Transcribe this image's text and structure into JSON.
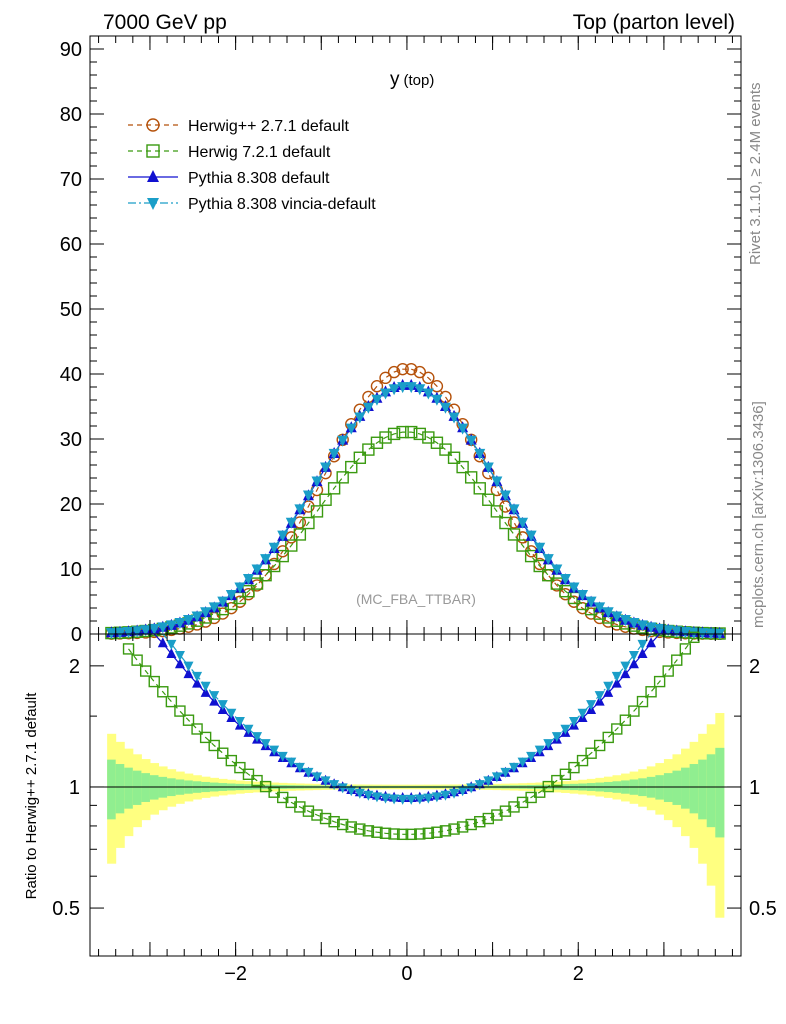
{
  "header": {
    "left": "7000 GeV pp",
    "right": "Top (parton level)"
  },
  "side_labels": {
    "rivet": "Rivet 3.1.10, ≥ 2.4M events",
    "mcplots": "mcplots.cern.ch [arXiv:1306.3436]"
  },
  "colors": {
    "herwig_pp": "#b5510a",
    "herwig7": "#3a9a10",
    "pythia": "#1010d0",
    "vincia": "#1a9ec8",
    "band_green": "#90ee90",
    "band_yellow": "#ffff80"
  },
  "chart_data": [
    {
      "type": "line",
      "title": "y (top)",
      "title_main": "y",
      "title_sub": "(top)",
      "watermark": "(MC_FBA_TTBAR)",
      "xlabel": "",
      "ylabel": "",
      "xlim": [
        -3.7,
        3.9
      ],
      "ylim": [
        0,
        92
      ],
      "yticks": [
        0,
        10,
        20,
        30,
        40,
        50,
        60,
        70,
        80,
        90
      ],
      "ytick_labels": [
        "0",
        "10",
        "20",
        "30",
        "40",
        "50",
        "60",
        "70",
        "80",
        "90"
      ],
      "legend": [
        {
          "label": "Herwig++ 2.7.1 default",
          "marker": "circle-open",
          "style": "dashed",
          "color": "#b5510a"
        },
        {
          "label": "Herwig 7.2.1 default",
          "marker": "square-open",
          "style": "dashed",
          "color": "#3a9a10"
        },
        {
          "label": "Pythia 8.308 default",
          "marker": "triangle-up",
          "style": "solid",
          "color": "#1010d0"
        },
        {
          "label": "Pythia 8.308 vincia-default",
          "marker": "triangle-down",
          "style": "dashdot",
          "color": "#1a9ec8"
        }
      ],
      "series": [
        {
          "name": "Herwig++ 2.7.1 default",
          "peak": 40.8,
          "sigma": 0.95
        },
        {
          "name": "Herwig 7.2.1 default",
          "peak": 31.1,
          "sigma": 1.05
        },
        {
          "name": "Pythia 8.308 default",
          "peak": 38.3,
          "sigma": 1.06
        },
        {
          "name": "Pythia 8.308 vincia-default",
          "peak": 38.1,
          "sigma": 1.07
        }
      ],
      "bin_width": 0.1,
      "x_range_points": [
        -3.45,
        3.65
      ]
    },
    {
      "type": "line",
      "title": "",
      "xlabel": "",
      "ylabel": "Ratio to Herwig++ 2.7.1 default",
      "xlim": [
        -3.7,
        3.9
      ],
      "ylim": [
        0.38,
        2.4
      ],
      "yscale": "log",
      "yticks": [
        0.5,
        1,
        2
      ],
      "ytick_labels": [
        "0.5",
        "1",
        "2"
      ],
      "xticks": [
        -2,
        0,
        2
      ],
      "xtick_labels": [
        "−2",
        "0",
        "2"
      ],
      "reference": 1
    }
  ]
}
